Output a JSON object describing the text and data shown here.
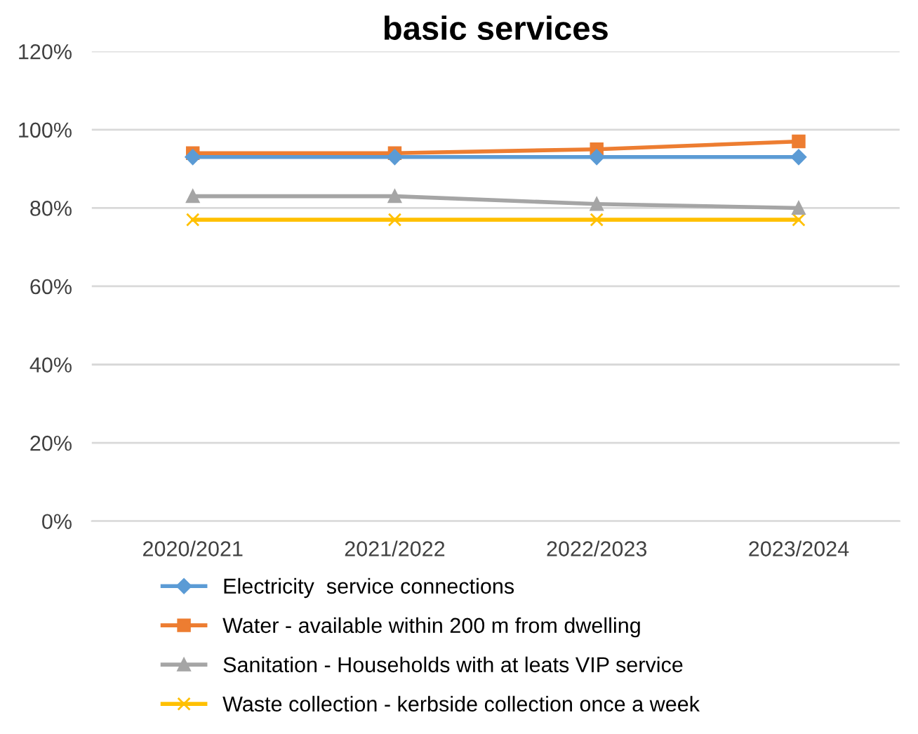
{
  "chart_data": {
    "type": "line",
    "title": "basic services",
    "categories": [
      "2020/2021",
      "2021/2022",
      "2022/2023",
      "2023/2024"
    ],
    "series": [
      {
        "name": "Electricity  service connections",
        "color": "#5b9bd5",
        "marker": "diamond",
        "values": [
          93,
          93,
          93,
          93
        ]
      },
      {
        "name": "Water - available within 200 m from dwelling",
        "color": "#ed7d31",
        "marker": "square",
        "values": [
          94,
          94,
          95,
          97
        ]
      },
      {
        "name": "Sanitation - Households with at leats VIP service",
        "color": "#a5a5a5",
        "marker": "triangle",
        "values": [
          83,
          83,
          81,
          80
        ]
      },
      {
        "name": "Waste collection - kerbside collection once a week",
        "color": "#ffc000",
        "marker": "cross",
        "values": [
          77,
          77,
          77,
          77
        ]
      }
    ],
    "ylim": [
      0,
      120
    ],
    "yticks": [
      {
        "value": 0,
        "label": "0%"
      },
      {
        "value": 20,
        "label": "20%"
      },
      {
        "value": 40,
        "label": "40%"
      },
      {
        "value": 60,
        "label": "60%"
      },
      {
        "value": 80,
        "label": "80%"
      },
      {
        "value": 100,
        "label": "100%"
      },
      {
        "value": 120,
        "label": "120%"
      }
    ],
    "grid": "y",
    "legend": "bottom",
    "line_style": "solid"
  }
}
